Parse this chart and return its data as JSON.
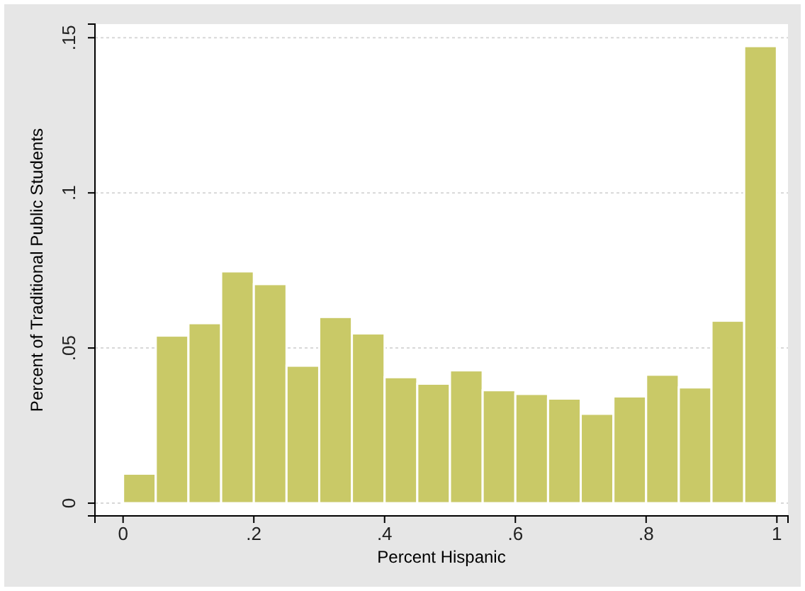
{
  "chart_data": {
    "type": "histogram",
    "xlabel": "Percent Hispanic",
    "ylabel": "Percent of Traditional Public Students",
    "bins": [
      0,
      0.05,
      0.1,
      0.15,
      0.2,
      0.25,
      0.3,
      0.35,
      0.4,
      0.45,
      0.5,
      0.55,
      0.6,
      0.65,
      0.7,
      0.75,
      0.8,
      0.85,
      0.9,
      0.95,
      1
    ],
    "values": [
      0.0095,
      0.054,
      0.058,
      0.0747,
      0.0706,
      0.0443,
      0.06,
      0.0547,
      0.0406,
      0.0385,
      0.0428,
      0.0364,
      0.0352,
      0.0337,
      0.0288,
      0.0344,
      0.0414,
      0.0373,
      0.0588,
      0.1473
    ],
    "color": "#c9c967",
    "xlim": [
      -0.043,
      1.017
    ],
    "xticks": [
      0,
      {
        "value": 0.2,
        "label": ".2"
      },
      {
        "value": 0.4,
        "label": ".4"
      },
      {
        "value": 0.6,
        "label": ".6"
      },
      {
        "value": 0.8,
        "label": ".8"
      },
      1
    ],
    "ylim": [
      -0.0041,
      0.1544
    ],
    "yticks": [
      0,
      {
        "value": 0.05,
        "label": ".05"
      },
      {
        "value": 0.1,
        "label": ".1"
      },
      {
        "value": 0.15,
        "label": ".15"
      }
    ],
    "grid": "y"
  }
}
